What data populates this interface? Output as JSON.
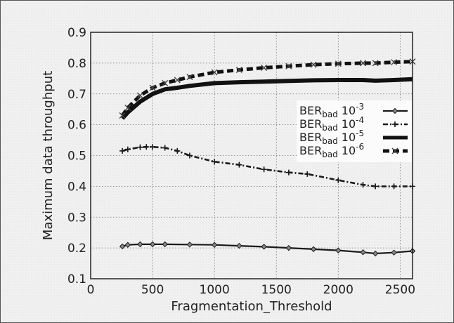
{
  "chart_data": {
    "type": "line",
    "title": "",
    "xlabel": "Fragmentation_Threshold",
    "ylabel": "Maximum data throughput",
    "xlim": [
      0,
      2600
    ],
    "ylim": [
      0.1,
      0.9
    ],
    "x_ticks": [
      0,
      500,
      1000,
      1500,
      2000,
      2500
    ],
    "y_ticks": [
      0.1,
      0.2,
      0.3,
      0.4,
      0.5,
      0.6,
      0.7,
      0.8,
      0.9
    ],
    "x_tick_labels": [
      "0",
      "500",
      "1000",
      "1500",
      "2000",
      "2500"
    ],
    "y_tick_labels": [
      "0.1",
      "0.2",
      "0.3",
      "0.4",
      "0.5",
      "0.6",
      "0.7",
      "0.8",
      "0.9"
    ],
    "grid": true,
    "legend_position": "right",
    "series": [
      {
        "name_base": "BER",
        "name_sub": "bad",
        "name_value": "10",
        "name_exp": "-3",
        "color": "#1a1a1a",
        "style": "solid",
        "width": 2.2,
        "marker": "diamond",
        "x": [
          256,
          300,
          400,
          500,
          600,
          800,
          1000,
          1200,
          1400,
          1600,
          1800,
          2000,
          2200,
          2300,
          2450,
          2600
        ],
        "y": [
          0.205,
          0.21,
          0.212,
          0.212,
          0.212,
          0.211,
          0.21,
          0.207,
          0.204,
          0.2,
          0.196,
          0.192,
          0.186,
          0.182,
          0.185,
          0.19
        ]
      },
      {
        "name_base": "BER",
        "name_sub": "bad",
        "name_value": "10",
        "name_exp": "-4",
        "color": "#1a1a1a",
        "style": "dotdash",
        "width": 2.6,
        "marker": "plus",
        "x": [
          256,
          300,
          400,
          450,
          500,
          600,
          700,
          800,
          1000,
          1200,
          1400,
          1600,
          1750,
          2000,
          2200,
          2300,
          2450,
          2600
        ],
        "y": [
          0.515,
          0.52,
          0.527,
          0.528,
          0.528,
          0.525,
          0.515,
          0.5,
          0.48,
          0.47,
          0.455,
          0.445,
          0.44,
          0.42,
          0.405,
          0.4,
          0.4,
          0.4
        ]
      },
      {
        "name_base": "BER",
        "name_sub": "bad",
        "name_value": "10",
        "name_exp": "-5",
        "color": "#111111",
        "style": "solid",
        "width": 6,
        "marker": "none",
        "x": [
          256,
          300,
          400,
          500,
          600,
          700,
          800,
          1000,
          1200,
          1400,
          1600,
          1800,
          2000,
          2200,
          2300,
          2450,
          2600
        ],
        "y": [
          0.62,
          0.64,
          0.675,
          0.7,
          0.715,
          0.72,
          0.726,
          0.735,
          0.738,
          0.74,
          0.742,
          0.744,
          0.745,
          0.745,
          0.743,
          0.745,
          0.748
        ]
      },
      {
        "name_base": "BER",
        "name_sub": "bad",
        "name_value": "10",
        "name_exp": "-6",
        "color": "#111111",
        "style": "dashed",
        "width": 5,
        "marker": "x",
        "x": [
          256,
          300,
          400,
          500,
          600,
          700,
          800,
          1000,
          1200,
          1400,
          1600,
          1800,
          2000,
          2200,
          2300,
          2450,
          2600
        ],
        "y": [
          0.63,
          0.655,
          0.695,
          0.72,
          0.735,
          0.745,
          0.755,
          0.77,
          0.778,
          0.785,
          0.79,
          0.795,
          0.798,
          0.8,
          0.8,
          0.803,
          0.805
        ]
      }
    ]
  }
}
